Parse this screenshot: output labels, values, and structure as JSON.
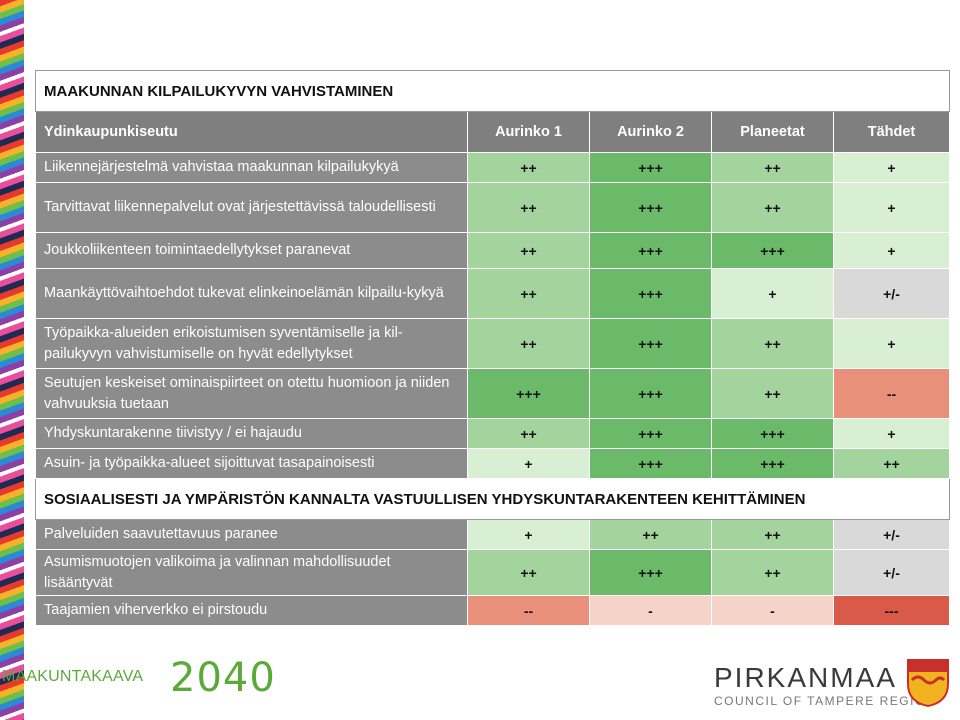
{
  "section1_title": "MAAKUNNAN KILPAILUKYVYN VAHVISTAMINEN",
  "header": {
    "row_label": "Ydinkaupunkiseutu",
    "columns": [
      "Aurinko 1",
      "Aurinko 2",
      "Planeetat",
      "Tähdet"
    ]
  },
  "rows1": [
    {
      "label": "Liikennejärjestelmä vahvistaa maakunnan kilpailukykyä",
      "values": [
        "++",
        "+++",
        "++",
        "+"
      ],
      "cls": [
        "g2",
        "g3",
        "g2",
        "g1"
      ]
    },
    {
      "label": "Tarvittavat liikennepalvelut ovat järjestettävissä taloudellisesti",
      "values": [
        "++",
        "+++",
        "++",
        "+"
      ],
      "cls": [
        "g2",
        "g3",
        "g2",
        "g1"
      ]
    },
    {
      "label": "Joukkoliikenteen toimintaedellytykset paranevat",
      "values": [
        "++",
        "+++",
        "+++",
        "+"
      ],
      "cls": [
        "g2",
        "g3",
        "g3",
        "g1"
      ]
    },
    {
      "label": "Maankäyttövaihtoehdot tukevat elinkeinoelämän kilpailu-kykyä",
      "values": [
        "++",
        "+++",
        "+",
        "+/-"
      ],
      "cls": [
        "g2",
        "g3",
        "g1",
        "gr"
      ]
    },
    {
      "label": "Työpaikka-alueiden erikoistumisen syventämiselle ja kil-pailukyvyn vahvistumiselle on hyvät edellytykset",
      "values": [
        "++",
        "+++",
        "++",
        "+"
      ],
      "cls": [
        "g2",
        "g3",
        "g2",
        "g1"
      ]
    },
    {
      "label": "Seutujen keskeiset ominaispiirteet on otettu huomioon ja niiden vahvuuksia tuetaan",
      "values": [
        "+++",
        "+++",
        "++",
        "--"
      ],
      "cls": [
        "g3",
        "g3",
        "g2",
        "r2"
      ]
    },
    {
      "label": "Yhdyskuntarakenne tiivistyy / ei hajaudu",
      "values": [
        "++",
        "+++",
        "+++",
        "+"
      ],
      "cls": [
        "g2",
        "g3",
        "g3",
        "g1"
      ]
    },
    {
      "label": "Asuin- ja työpaikka-alueet sijoittuvat tasapainoisesti",
      "values": [
        "+",
        "+++",
        "+++",
        "++"
      ],
      "cls": [
        "g1",
        "g3",
        "g3",
        "g2"
      ]
    }
  ],
  "section2_title": "SOSIAALISESTI JA YMPÄRISTÖN KANNALTA VASTUULLISEN YHDYSKUNTARAKENTEEN KEHITTÄMINEN",
  "rows2": [
    {
      "label": "Palveluiden saavutettavuus paranee",
      "values": [
        "+",
        "++",
        "++",
        "+/-"
      ],
      "cls": [
        "g1",
        "g2",
        "g2",
        "gr"
      ]
    },
    {
      "label": "Asumismuotojen valikoima ja valinnan mahdollisuudet lisääntyvät",
      "values": [
        "++",
        "+++",
        "++",
        "+/-"
      ],
      "cls": [
        "g2",
        "g3",
        "g2",
        "gr"
      ]
    },
    {
      "label": "Taajamien viherverkko ei pirstoudu",
      "values": [
        "--",
        "-",
        "-",
        "---"
      ],
      "cls": [
        "r2",
        "r1",
        "r1",
        "r3"
      ]
    }
  ],
  "footer": {
    "plan_name": "MAAKUNTAKAAVA",
    "plan_year": "2040",
    "org_name": "PIRKANMAA",
    "org_sub": "COUNCIL OF TAMPERE REGION"
  },
  "colors": {
    "strong_positive": "#6aba6a",
    "positive": "#a3d49e",
    "slight_positive": "#d9efd4",
    "neutral": "#d9d9d9",
    "slight_negative": "#f6d3c8",
    "negative": "#e8907a",
    "strong_negative": "#d95a48",
    "brand_green": "#5aaa3a"
  },
  "icons": [
    "color-stripe-decoration",
    "pirkanmaa-crest-icon"
  ]
}
